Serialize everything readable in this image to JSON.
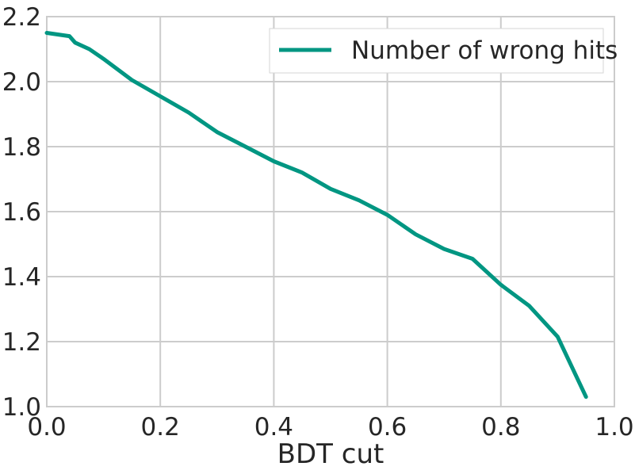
{
  "chart_data": {
    "type": "line",
    "title": "",
    "xlabel": "BDT cut",
    "ylabel": "",
    "xlim": [
      0.0,
      1.0
    ],
    "ylim": [
      1.0,
      2.2
    ],
    "x_ticks": [
      "0.0",
      "0.2",
      "0.4",
      "0.6",
      "0.8",
      "1.0"
    ],
    "y_ticks": [
      "1.0",
      "1.2",
      "1.4",
      "1.6",
      "1.8",
      "2.0",
      "2.2"
    ],
    "grid": true,
    "legend_position": "top-right",
    "series": [
      {
        "name": "Number of wrong hits",
        "color": "#009682",
        "x": [
          0.0,
          0.04,
          0.05,
          0.075,
          0.1,
          0.15,
          0.2,
          0.25,
          0.3,
          0.35,
          0.4,
          0.45,
          0.5,
          0.55,
          0.6,
          0.65,
          0.7,
          0.75,
          0.8,
          0.85,
          0.9,
          0.95
        ],
        "y": [
          2.15,
          2.14,
          2.12,
          2.1,
          2.07,
          2.005,
          1.955,
          1.905,
          1.845,
          1.8,
          1.755,
          1.72,
          1.67,
          1.635,
          1.59,
          1.53,
          1.485,
          1.455,
          1.375,
          1.31,
          1.215,
          1.03
        ]
      }
    ]
  }
}
